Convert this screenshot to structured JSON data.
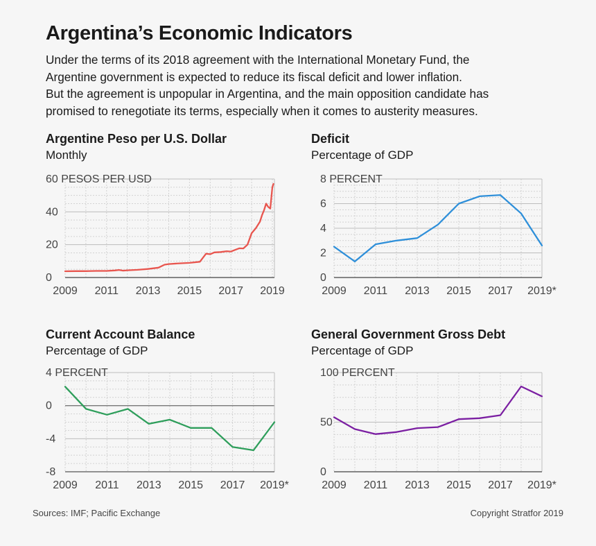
{
  "title": "Argentina’s Economic Indicators",
  "intro": [
    "Under the terms of its 2018 agreement with the International Monetary Fund, the",
    "Argentine government is expected to reduce its fiscal deficit and lower inflation.",
    "But the agreement is unpopular in Argentina, and the main opposition candidate has",
    "promised to renegotiate its terms, especially when it comes to austerity measures."
  ],
  "footer": {
    "sources": "Sources: IMF; Pacific Exchange",
    "copyright": "Copyright Stratfor 2019"
  },
  "chart_data": [
    {
      "type": "line",
      "title": "Argentine Peso per U.S. Dollar",
      "subtitle": "Monthly",
      "ylabel": "PESOS PER USD",
      "color": "#e8554e",
      "ylim": [
        0,
        60
      ],
      "xlim": [
        2009,
        2019.1
      ],
      "yticks": [
        0,
        20,
        40,
        60
      ],
      "xticks": [
        "2009",
        "2011",
        "2013",
        "2015",
        "2017",
        "2019"
      ],
      "x": [
        2009.0,
        2009.5,
        2010.0,
        2010.5,
        2011.0,
        2011.4,
        2011.6,
        2011.8,
        2012.0,
        2012.5,
        2013.0,
        2013.5,
        2013.8,
        2014.0,
        2014.5,
        2015.0,
        2015.5,
        2015.8,
        2016.0,
        2016.2,
        2016.5,
        2016.8,
        2017.0,
        2017.2,
        2017.4,
        2017.6,
        2017.8,
        2018.0,
        2018.2,
        2018.4,
        2018.5,
        2018.6,
        2018.7,
        2018.8,
        2018.9,
        2019.0,
        2019.05
      ],
      "y": [
        3.8,
        3.9,
        3.9,
        4.0,
        4.0,
        4.3,
        4.6,
        4.2,
        4.4,
        4.7,
        5.2,
        6.0,
        7.8,
        8.2,
        8.6,
        8.9,
        9.6,
        14.5,
        14.2,
        15.3,
        15.5,
        16.0,
        15.8,
        16.8,
        17.8,
        17.7,
        20.0,
        27.0,
        30.0,
        34.0,
        38.0,
        41.0,
        45.0,
        43.0,
        42.0,
        55.0,
        57.0
      ]
    },
    {
      "type": "line",
      "title": "Deficit",
      "subtitle": "Percentage of GDP",
      "ylabel": "PERCENT",
      "color": "#2e8fd9",
      "ylim": [
        0,
        8
      ],
      "xlim": [
        2009,
        2019
      ],
      "yticks": [
        0,
        2,
        4,
        6,
        8
      ],
      "xticks": [
        "2009",
        "2011",
        "2013",
        "2015",
        "2017",
        "2019*"
      ],
      "x": [
        2009,
        2010,
        2011,
        2012,
        2013,
        2014,
        2015,
        2016,
        2017,
        2018,
        2019
      ],
      "y": [
        2.5,
        1.3,
        2.7,
        3.0,
        3.2,
        4.3,
        6.0,
        6.6,
        6.7,
        5.2,
        2.6
      ]
    },
    {
      "type": "line",
      "title": "Current Account Balance",
      "subtitle": "Percentage of GDP",
      "ylabel": "PERCENT",
      "color": "#2e9e5b",
      "ylim": [
        -8,
        4
      ],
      "xlim": [
        2009,
        2019
      ],
      "yticks": [
        -8,
        -4,
        0,
        4
      ],
      "xticks": [
        "2009",
        "2011",
        "2013",
        "2015",
        "2017",
        "2019*"
      ],
      "x": [
        2009,
        2010,
        2011,
        2012,
        2013,
        2014,
        2015,
        2016,
        2017,
        2018,
        2019
      ],
      "y": [
        2.3,
        -0.4,
        -1.1,
        -0.4,
        -2.2,
        -1.7,
        -2.7,
        -2.7,
        -5.0,
        -5.4,
        -2.0
      ]
    },
    {
      "type": "line",
      "title": "General Government Gross Debt",
      "subtitle": "Percentage of GDP",
      "ylabel": "PERCENT",
      "color": "#7b1fa2",
      "ylim": [
        0,
        100
      ],
      "xlim": [
        2009,
        2019
      ],
      "yticks": [
        0,
        50,
        100
      ],
      "xticks": [
        "2009",
        "2011",
        "2013",
        "2015",
        "2017",
        "2019*"
      ],
      "x": [
        2009,
        2010,
        2011,
        2012,
        2013,
        2014,
        2015,
        2016,
        2017,
        2018,
        2019
      ],
      "y": [
        55,
        43,
        38,
        40,
        44,
        45,
        53,
        54,
        57,
        86,
        76
      ]
    }
  ]
}
